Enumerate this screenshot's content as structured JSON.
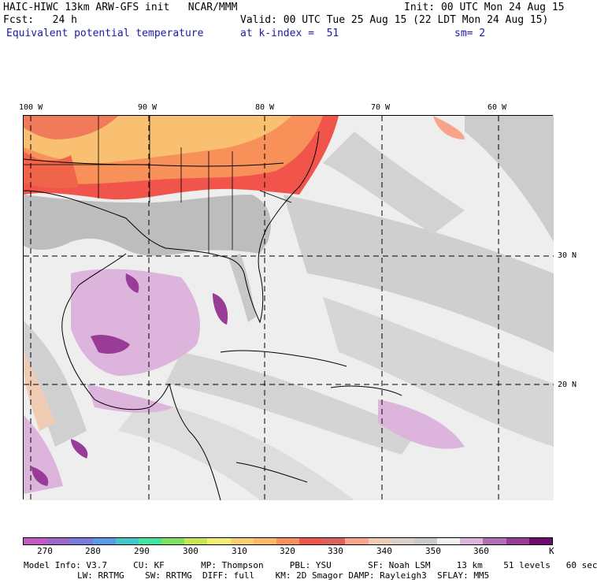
{
  "header": {
    "model_line": "HAIC-HIWC 13km ARW-GFS init   NCAR/MMM",
    "init": "Init: 00 UTC Mon 24 Aug 15",
    "fcst": "Fcst:   24 h",
    "valid": "Valid: 00 UTC Tue 25 Aug 15 (22 LDT Mon 24 Aug 15)",
    "field": "Equivalent potential temperature",
    "level": "at k-index =  51",
    "smooth": "sm= 2"
  },
  "map": {
    "lon_labels": [
      "100 W",
      "90 W",
      "80 W",
      "70 W",
      "60 W"
    ],
    "lat_labels": [
      "30 N",
      "20 N"
    ]
  },
  "colorbar": {
    "colors": [
      "#c559c5",
      "#a066cc",
      "#7a7ae0",
      "#5a9ae6",
      "#3fc8c8",
      "#3fe6a0",
      "#80e060",
      "#c8e650",
      "#f0f070",
      "#f8d070",
      "#fbbb66",
      "#f8905a",
      "#f0544a",
      "#e06060",
      "#f7a48a",
      "#f0ccb4",
      "#d9d0c8",
      "#cacaca",
      "#f0f0f0",
      "#dcb4dc",
      "#b070b8",
      "#983c98",
      "#700a70"
    ],
    "tick_labels": [
      "270",
      "280",
      "290",
      "300",
      "310",
      "320",
      "330",
      "340",
      "350",
      "360",
      "K"
    ]
  },
  "footer": {
    "line1": "Model Info: V3.7     CU: KF       MP: Thompson     PBL: YSU       SF: Noah LSM     13 km    51 levels   60 sec",
    "line2": "LW: RRTMG    SW: RRTMG  DIFF: full    KM: 2D Smagor DAMP: Rayleigh3  SFLAY: MM5"
  }
}
